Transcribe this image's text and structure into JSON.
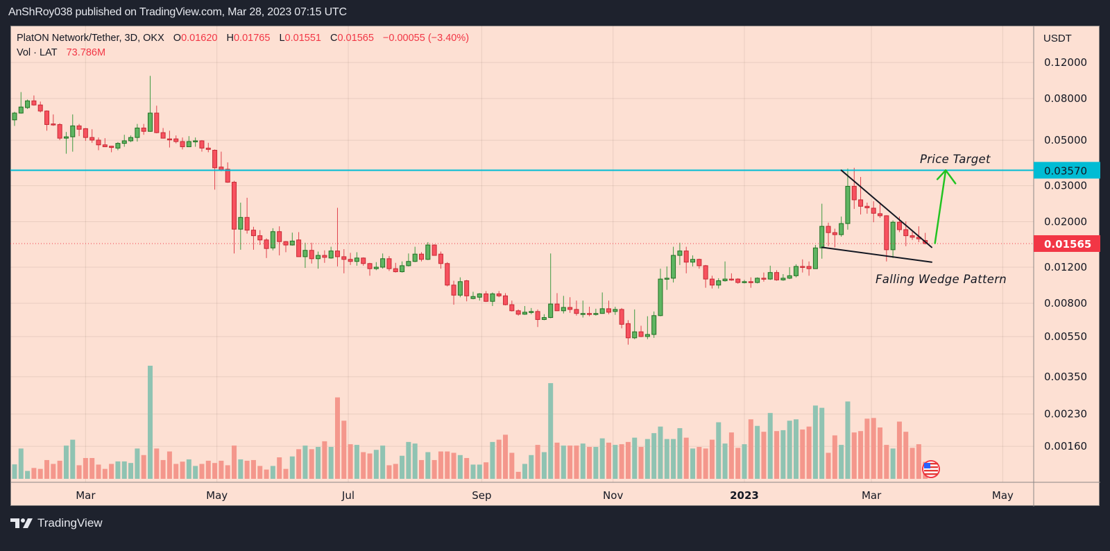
{
  "header": {
    "publisher_line": "AnShRoy038 published on TradingView.com, Mar 28, 2023 07:15 UTC"
  },
  "legend": {
    "symbol": "PlatON Network/Tether, 3D, OKX",
    "o_label": "O",
    "o": "0.01620",
    "h_label": "H",
    "h": "0.01765",
    "l_label": "L",
    "l": "0.01551",
    "c_label": "C",
    "c": "0.01565",
    "change": "−0.00055 (−3.40%)",
    "vol_label": "Vol · LAT",
    "vol": "73.786M"
  },
  "price_axis": {
    "currency": "USDT",
    "ticks": [
      "0.12000",
      "0.08000",
      "0.05000",
      "0.03000",
      "0.02000",
      "0.01200",
      "0.00800",
      "0.00550",
      "0.00350",
      "0.00230",
      "0.00160"
    ],
    "target_label": "0.03570",
    "last_label": "0.01565"
  },
  "time_axis": {
    "ticks": [
      {
        "label": "Mar",
        "date": "2022-03-01"
      },
      {
        "label": "May",
        "date": "2022-05-01"
      },
      {
        "label": "Jul",
        "date": "2022-07-01"
      },
      {
        "label": "Sep",
        "date": "2022-09-01"
      },
      {
        "label": "Nov",
        "date": "2022-11-01"
      },
      {
        "label": "2023",
        "date": "2023-01-01"
      },
      {
        "label": "Mar",
        "date": "2023-03-01"
      },
      {
        "label": "May",
        "date": "2023-05-01"
      }
    ]
  },
  "annotations": {
    "price_target": "Price Target",
    "pattern": "Falling Wedge Pattern"
  },
  "footer": {
    "brand": "TradingView"
  },
  "colors": {
    "background": "#fde0d3",
    "frame": "#1e222d",
    "up": "#4caf50",
    "down": "#f23645",
    "volume_up": "#8fc3b2",
    "volume_down": "#f4978c",
    "target_line": "#00bcd4",
    "wedge": "#131722",
    "arrow": "#22c322"
  },
  "icons": {
    "logo": "tradingview-logo-icon",
    "flag": "us-flag-icon"
  },
  "chart_data": {
    "type": "candlestick",
    "title": "PlatON Network/Tether, 3D, OKX",
    "y_scale": "log",
    "ylim": [
      0.0011,
      0.18
    ],
    "xlim": [
      "2022-01-27",
      "2023-05-31"
    ],
    "grid": true,
    "candle_fields": [
      "date",
      "open",
      "high",
      "low",
      "close",
      "volume_relative"
    ],
    "target_level": 0.0357,
    "last_price": 0.01565,
    "wedge_upper": [
      [
        "2023-02-15",
        0.0357
      ],
      [
        "2023-03-29",
        0.015
      ]
    ],
    "wedge_lower": [
      [
        "2023-02-06",
        0.015
      ],
      [
        "2023-03-29",
        0.0127
      ]
    ],
    "target_arrow": [
      [
        "2023-03-26",
        0.0157
      ],
      [
        "2023-03-31",
        0.0357
      ]
    ],
    "candles": [
      [
        "2022-01-27",
        0.0629,
        0.0689,
        0.0588,
        0.0679,
        0.128
      ],
      [
        "2022-01-30",
        0.0679,
        0.086,
        0.0675,
        0.0727,
        0.268
      ],
      [
        "2022-02-02",
        0.0722,
        0.0791,
        0.0711,
        0.0779,
        0.07
      ],
      [
        "2022-02-05",
        0.0779,
        0.0828,
        0.0738,
        0.0744,
        0.096
      ],
      [
        "2022-02-08",
        0.0744,
        0.0773,
        0.0684,
        0.0695,
        0.088
      ],
      [
        "2022-02-11",
        0.0695,
        0.07,
        0.0557,
        0.0597,
        0.166
      ],
      [
        "2022-02-14",
        0.0601,
        0.0669,
        0.0588,
        0.0597,
        0.132
      ],
      [
        "2022-02-17",
        0.0597,
        0.0606,
        0.0501,
        0.0512,
        0.16
      ],
      [
        "2022-02-20",
        0.0512,
        0.0549,
        0.043,
        0.052,
        0.294
      ],
      [
        "2022-02-23",
        0.052,
        0.0669,
        0.044,
        0.0588,
        0.346
      ],
      [
        "2022-02-26",
        0.0588,
        0.0601,
        0.0524,
        0.0566,
        0.12
      ],
      [
        "2022-03-01",
        0.057,
        0.0574,
        0.0497,
        0.0516,
        0.184
      ],
      [
        "2022-03-04",
        0.0516,
        0.0566,
        0.0486,
        0.0501,
        0.184
      ],
      [
        "2022-03-07",
        0.0501,
        0.0516,
        0.0447,
        0.0475,
        0.126
      ],
      [
        "2022-03-10",
        0.0475,
        0.0512,
        0.0463,
        0.0465,
        0.088
      ],
      [
        "2022-03-13",
        0.0468,
        0.047,
        0.0437,
        0.0461,
        0.132
      ],
      [
        "2022-03-16",
        0.0458,
        0.049,
        0.0447,
        0.0483,
        0.154
      ],
      [
        "2022-03-19",
        0.0483,
        0.0532,
        0.0465,
        0.0497,
        0.154
      ],
      [
        "2022-03-22",
        0.0497,
        0.0528,
        0.049,
        0.0516,
        0.14
      ],
      [
        "2022-03-25",
        0.0516,
        0.0601,
        0.0493,
        0.0574,
        0.268
      ],
      [
        "2022-03-28",
        0.0574,
        0.0601,
        0.0532,
        0.0553,
        0.21
      ],
      [
        "2022-03-31",
        0.0553,
        0.1032,
        0.055,
        0.0679,
        1.0
      ],
      [
        "2022-04-03",
        0.0679,
        0.0738,
        0.0541,
        0.0545,
        0.268
      ],
      [
        "2022-04-06",
        0.0545,
        0.0574,
        0.051,
        0.0512,
        0.166
      ],
      [
        "2022-04-09",
        0.0508,
        0.0557,
        0.0461,
        0.0504,
        0.242
      ],
      [
        "2022-04-12",
        0.0508,
        0.0528,
        0.0483,
        0.0493,
        0.132
      ],
      [
        "2022-04-15",
        0.0493,
        0.0516,
        0.0451,
        0.0465,
        0.152
      ],
      [
        "2022-04-18",
        0.0465,
        0.0524,
        0.0463,
        0.0493,
        0.172
      ],
      [
        "2022-04-21",
        0.0493,
        0.0516,
        0.0465,
        0.0497,
        0.114
      ],
      [
        "2022-04-24",
        0.0497,
        0.0501,
        0.044,
        0.0458,
        0.132
      ],
      [
        "2022-04-27",
        0.0458,
        0.0486,
        0.0437,
        0.0451,
        0.16
      ],
      [
        "2022-04-30",
        0.0447,
        0.0451,
        0.0287,
        0.0367,
        0.14
      ],
      [
        "2022-05-03",
        0.037,
        0.044,
        0.0353,
        0.0358,
        0.16
      ],
      [
        "2022-05-06",
        0.0361,
        0.039,
        0.031,
        0.0312,
        0.12
      ],
      [
        "2022-05-09",
        0.0312,
        0.0317,
        0.014,
        0.0184,
        0.294
      ],
      [
        "2022-05-12",
        0.0184,
        0.0248,
        0.0146,
        0.021,
        0.172
      ],
      [
        "2022-05-15",
        0.021,
        0.0262,
        0.0175,
        0.0182,
        0.16
      ],
      [
        "2022-05-18",
        0.0182,
        0.0189,
        0.0146,
        0.0171,
        0.166
      ],
      [
        "2022-05-21",
        0.0171,
        0.0182,
        0.0154,
        0.0163,
        0.114
      ],
      [
        "2022-05-24",
        0.0163,
        0.0166,
        0.0133,
        0.0148,
        0.082
      ],
      [
        "2022-05-27",
        0.0149,
        0.0186,
        0.0145,
        0.0179,
        0.114
      ],
      [
        "2022-05-30",
        0.0179,
        0.019,
        0.0137,
        0.016,
        0.19
      ],
      [
        "2022-06-02",
        0.016,
        0.0161,
        0.0142,
        0.0154,
        0.088
      ],
      [
        "2022-06-05",
        0.0154,
        0.0177,
        0.0153,
        0.0161,
        0.198
      ],
      [
        "2022-06-08",
        0.0163,
        0.0178,
        0.0135,
        0.0135,
        0.262
      ],
      [
        "2022-06-11",
        0.0135,
        0.0158,
        0.0119,
        0.0145,
        0.294
      ],
      [
        "2022-06-14",
        0.0145,
        0.0158,
        0.0125,
        0.0132,
        0.262
      ],
      [
        "2022-06-17",
        0.0132,
        0.0143,
        0.0118,
        0.0137,
        0.282
      ],
      [
        "2022-06-20",
        0.0137,
        0.0145,
        0.0126,
        0.0134,
        0.332
      ],
      [
        "2022-06-23",
        0.0133,
        0.0151,
        0.0132,
        0.0144,
        0.282
      ],
      [
        "2022-06-26",
        0.0144,
        0.0234,
        0.0121,
        0.0135,
        0.72
      ],
      [
        "2022-06-29",
        0.0135,
        0.0147,
        0.0112,
        0.0131,
        0.514
      ],
      [
        "2022-07-02",
        0.0131,
        0.0141,
        0.0123,
        0.0128,
        0.306
      ],
      [
        "2022-07-05",
        0.0128,
        0.0142,
        0.0122,
        0.0133,
        0.3
      ],
      [
        "2022-07-08",
        0.0133,
        0.0134,
        0.0122,
        0.0125,
        0.236
      ],
      [
        "2022-07-11",
        0.0125,
        0.0126,
        0.0109,
        0.0118,
        0.224
      ],
      [
        "2022-07-14",
        0.0118,
        0.0127,
        0.0116,
        0.012,
        0.256
      ],
      [
        "2022-07-17",
        0.012,
        0.014,
        0.0118,
        0.0132,
        0.294
      ],
      [
        "2022-07-20",
        0.0132,
        0.0136,
        0.0115,
        0.0118,
        0.12
      ],
      [
        "2022-07-23",
        0.0118,
        0.0126,
        0.0113,
        0.0114,
        0.132
      ],
      [
        "2022-07-26",
        0.0114,
        0.0128,
        0.0113,
        0.0122,
        0.204
      ],
      [
        "2022-07-29",
        0.0122,
        0.014,
        0.0121,
        0.0128,
        0.326
      ],
      [
        "2022-08-01",
        0.0128,
        0.0151,
        0.0127,
        0.0139,
        0.312
      ],
      [
        "2022-08-04",
        0.0139,
        0.0142,
        0.0128,
        0.0131,
        0.166
      ],
      [
        "2022-08-07",
        0.0131,
        0.0159,
        0.013,
        0.0154,
        0.236
      ],
      [
        "2022-08-10",
        0.0154,
        0.0155,
        0.0137,
        0.0137,
        0.166
      ],
      [
        "2022-08-13",
        0.0139,
        0.0143,
        0.0118,
        0.0125,
        0.242
      ],
      [
        "2022-08-16",
        0.0125,
        0.0127,
        0.00967,
        0.00981,
        0.242
      ],
      [
        "2022-08-19",
        0.00981,
        0.0103,
        0.00787,
        0.00876,
        0.23
      ],
      [
        "2022-08-22",
        0.00876,
        0.0107,
        0.00856,
        0.0102,
        0.21
      ],
      [
        "2022-08-25",
        0.0103,
        0.0104,
        0.00817,
        0.00869,
        0.184
      ],
      [
        "2022-08-28",
        0.00843,
        0.0091,
        0.00836,
        0.00863,
        0.126
      ],
      [
        "2022-08-31",
        0.00856,
        0.00896,
        0.00824,
        0.00889,
        0.126
      ],
      [
        "2022-09-03",
        0.00889,
        0.00917,
        0.00811,
        0.00817,
        0.146
      ],
      [
        "2022-09-06",
        0.00817,
        0.00903,
        0.00775,
        0.00889,
        0.326
      ],
      [
        "2022-09-09",
        0.00889,
        0.00917,
        0.00856,
        0.00869,
        0.346
      ],
      [
        "2022-09-12",
        0.00869,
        0.00896,
        0.00781,
        0.00787,
        0.39
      ],
      [
        "2022-09-15",
        0.00787,
        0.00824,
        0.00729,
        0.00735,
        0.23
      ],
      [
        "2022-09-18",
        0.00735,
        0.00746,
        0.00696,
        0.00707,
        0.062
      ],
      [
        "2022-09-21",
        0.00707,
        0.00775,
        0.00702,
        0.00723,
        0.132
      ],
      [
        "2022-09-24",
        0.00723,
        0.00758,
        0.00707,
        0.00729,
        0.21
      ],
      [
        "2022-09-27",
        0.00729,
        0.00746,
        0.00612,
        0.00666,
        0.3
      ],
      [
        "2022-09-30",
        0.00666,
        0.00707,
        0.00661,
        0.00681,
        0.236
      ],
      [
        "2022-10-03",
        0.00681,
        0.014,
        0.00676,
        0.00793,
        0.846
      ],
      [
        "2022-10-06",
        0.00793,
        0.00896,
        0.00733,
        0.00735,
        0.32
      ],
      [
        "2022-10-09",
        0.00735,
        0.00869,
        0.00713,
        0.00763,
        0.294
      ],
      [
        "2022-10-12",
        0.00763,
        0.00856,
        0.00718,
        0.00746,
        0.294
      ],
      [
        "2022-10-15",
        0.00746,
        0.00824,
        0.00696,
        0.00713,
        0.294
      ],
      [
        "2022-10-18",
        0.00711,
        0.00824,
        0.00681,
        0.00713,
        0.312
      ],
      [
        "2022-10-21",
        0.00713,
        0.00769,
        0.00691,
        0.00711,
        0.282
      ],
      [
        "2022-10-24",
        0.00711,
        0.00752,
        0.00696,
        0.00713,
        0.282
      ],
      [
        "2022-10-27",
        0.00713,
        0.00903,
        0.00711,
        0.00752,
        0.358
      ],
      [
        "2022-10-30",
        0.00752,
        0.00824,
        0.00707,
        0.00723,
        0.32
      ],
      [
        "2022-11-02",
        0.00729,
        0.00769,
        0.00702,
        0.00746,
        0.3
      ],
      [
        "2022-11-05",
        0.00746,
        0.00758,
        0.00603,
        0.00631,
        0.306
      ],
      [
        "2022-11-08",
        0.00636,
        0.00661,
        0.00502,
        0.00542,
        0.326
      ],
      [
        "2022-11-11",
        0.00542,
        0.00746,
        0.00534,
        0.0058,
        0.364
      ],
      [
        "2022-11-14",
        0.0058,
        0.00621,
        0.00546,
        0.0055,
        0.282
      ],
      [
        "2022-11-17",
        0.0055,
        0.00691,
        0.00534,
        0.00563,
        0.352
      ],
      [
        "2022-11-20",
        0.00563,
        0.00729,
        0.00542,
        0.00696,
        0.404
      ],
      [
        "2022-11-23",
        0.00696,
        0.0118,
        0.00691,
        0.0105,
        0.462
      ],
      [
        "2022-11-26",
        0.0105,
        0.0121,
        0.0093,
        0.0106,
        0.352
      ],
      [
        "2022-11-29",
        0.0106,
        0.0151,
        0.0101,
        0.0137,
        0.352
      ],
      [
        "2022-12-02",
        0.0137,
        0.0158,
        0.0123,
        0.0144,
        0.448
      ],
      [
        "2022-12-05",
        0.0144,
        0.0151,
        0.0112,
        0.0127,
        0.364
      ],
      [
        "2022-12-08",
        0.0127,
        0.0137,
        0.0121,
        0.0131,
        0.268
      ],
      [
        "2022-12-11",
        0.0131,
        0.0132,
        0.0118,
        0.0122,
        0.282
      ],
      [
        "2022-12-14",
        0.0122,
        0.0123,
        0.00952,
        0.0105,
        0.268
      ],
      [
        "2022-12-17",
        0.0105,
        0.0109,
        0.00944,
        0.00981,
        0.346
      ],
      [
        "2022-12-20",
        0.00981,
        0.0106,
        0.00944,
        0.0103,
        0.5
      ],
      [
        "2022-12-23",
        0.0103,
        0.0128,
        0.0102,
        0.0105,
        0.312
      ],
      [
        "2022-12-26",
        0.0105,
        0.0112,
        0.0103,
        0.0104,
        0.41
      ],
      [
        "2022-12-29",
        0.0105,
        0.0106,
        0.00996,
        0.0101,
        0.274
      ],
      [
        "2023-01-01",
        0.0101,
        0.0104,
        0.01,
        0.0102,
        0.306
      ],
      [
        "2023-01-04",
        0.0102,
        0.0107,
        0.00952,
        0.0101,
        0.526
      ],
      [
        "2023-01-07",
        0.0101,
        0.0107,
        0.01,
        0.0106,
        0.468
      ],
      [
        "2023-01-10",
        0.0106,
        0.0113,
        0.0102,
        0.0105,
        0.416
      ],
      [
        "2023-01-13",
        0.0105,
        0.0122,
        0.0104,
        0.0113,
        0.582
      ],
      [
        "2023-01-16",
        0.0113,
        0.0116,
        0.0103,
        0.0104,
        0.422
      ],
      [
        "2023-01-19",
        0.0104,
        0.0111,
        0.0103,
        0.0106,
        0.43
      ],
      [
        "2023-01-22",
        0.0106,
        0.012,
        0.0105,
        0.0109,
        0.514
      ],
      [
        "2023-01-25",
        0.0109,
        0.0124,
        0.0107,
        0.0121,
        0.526
      ],
      [
        "2023-01-28",
        0.0121,
        0.0131,
        0.0113,
        0.012,
        0.436
      ],
      [
        "2023-01-31",
        0.0121,
        0.0128,
        0.0109,
        0.0118,
        0.462
      ],
      [
        "2023-02-03",
        0.0118,
        0.0154,
        0.0118,
        0.0149,
        0.648
      ],
      [
        "2023-02-06",
        0.0149,
        0.0245,
        0.0132,
        0.019,
        0.628
      ],
      [
        "2023-02-09",
        0.019,
        0.0198,
        0.0152,
        0.0177,
        0.23
      ],
      [
        "2023-02-12",
        0.0177,
        0.0185,
        0.015,
        0.0173,
        0.384
      ],
      [
        "2023-02-15",
        0.0173,
        0.0212,
        0.0169,
        0.0196,
        0.3
      ],
      [
        "2023-02-18",
        0.0196,
        0.0364,
        0.0183,
        0.0298,
        0.684
      ],
      [
        "2023-02-21",
        0.0298,
        0.0367,
        0.0231,
        0.0256,
        0.41
      ],
      [
        "2023-02-24",
        0.0256,
        0.0331,
        0.0217,
        0.0238,
        0.422
      ],
      [
        "2023-02-27",
        0.0238,
        0.0248,
        0.0219,
        0.0234,
        0.532
      ],
      [
        "2023-03-02",
        0.0233,
        0.0252,
        0.0199,
        0.022,
        0.538
      ],
      [
        "2023-03-05",
        0.0219,
        0.0248,
        0.0209,
        0.0214,
        0.454
      ],
      [
        "2023-03-08",
        0.0214,
        0.0215,
        0.0128,
        0.0146,
        0.3
      ],
      [
        "2023-03-11",
        0.0146,
        0.0203,
        0.0133,
        0.0199,
        0.268
      ],
      [
        "2023-03-14",
        0.0199,
        0.0212,
        0.0178,
        0.0183,
        0.506
      ],
      [
        "2023-03-17",
        0.0183,
        0.0201,
        0.0152,
        0.0171,
        0.416
      ],
      [
        "2023-03-20",
        0.0171,
        0.0179,
        0.0163,
        0.0168,
        0.274
      ],
      [
        "2023-03-23",
        0.0168,
        0.019,
        0.0159,
        0.0165,
        0.306
      ],
      [
        "2023-03-26",
        0.0162,
        0.01765,
        0.01551,
        0.01565,
        0.15
      ]
    ]
  }
}
